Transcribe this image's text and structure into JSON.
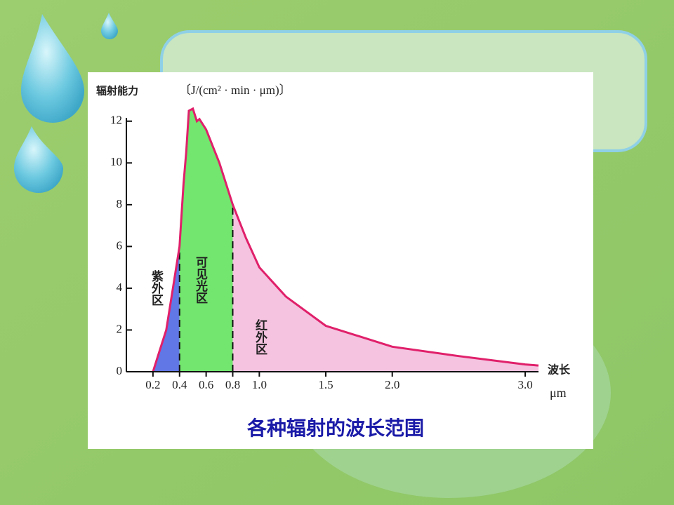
{
  "chart_data": {
    "type": "area",
    "y_label": "辐射能力",
    "y_unit": "〔J/(cm² · min · μm)〕",
    "x_label": "波长",
    "x_unit": "μm",
    "caption": "各种辐射的波长范围",
    "x": [
      0.2,
      0.25,
      0.3,
      0.35,
      0.4,
      0.43,
      0.45,
      0.47,
      0.5,
      0.53,
      0.55,
      0.6,
      0.7,
      0.8,
      0.9,
      1.0,
      1.2,
      1.5,
      2.0,
      2.5,
      3.0,
      3.1
    ],
    "values": [
      0,
      1,
      2,
      4,
      6,
      9,
      10.5,
      12.5,
      12.6,
      12,
      12.1,
      11.6,
      10,
      8,
      6.4,
      5,
      3.6,
      2.2,
      1.2,
      0.75,
      0.35,
      0.3
    ],
    "color": "#e0206a",
    "regions": [
      {
        "name": "紫外区",
        "range": [
          0.2,
          0.4
        ],
        "color": "#3a55e0"
      },
      {
        "name": "可见光区",
        "range": [
          0.4,
          0.8
        ],
        "color": "#4fe04a"
      },
      {
        "name": "红外区",
        "range": [
          0.8,
          3.1
        ],
        "color": "#f2b3d8"
      }
    ],
    "xlim": [
      0,
      3.1
    ],
    "ylim": [
      0,
      13
    ],
    "xticks": [
      0.2,
      0.4,
      0.6,
      0.8,
      {
        "value": 1,
        "label": "1.0"
      },
      1.5,
      {
        "value": 2,
        "label": "2.0"
      },
      {
        "value": 3,
        "label": "3.0"
      }
    ],
    "yticks": [
      0,
      2,
      4,
      6,
      8,
      10,
      12
    ]
  }
}
